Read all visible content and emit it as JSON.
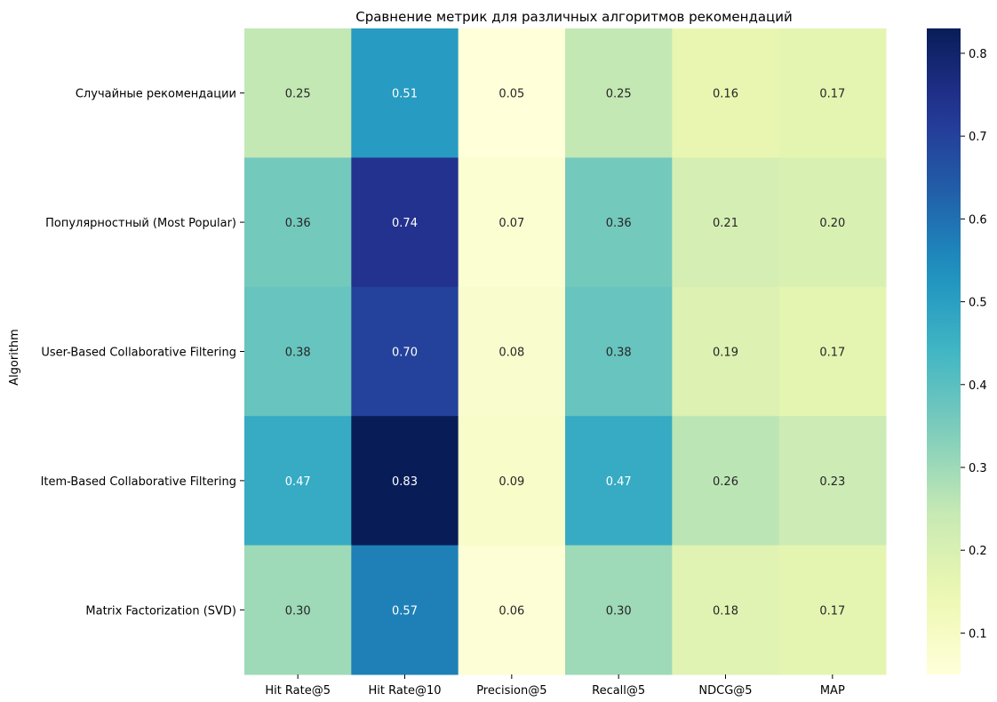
{
  "chart_data": {
    "type": "heatmap",
    "title": "Сравнение метрик для различных алгоритмов рекомендаций",
    "xlabel": "",
    "ylabel": "Algorithm",
    "columns": [
      "Hit Rate@5",
      "Hit Rate@10",
      "Precision@5",
      "Recall@5",
      "NDCG@5",
      "MAP"
    ],
    "rows": [
      "Случайные рекомендации",
      "Популярностный (Most Popular)",
      "User-Based Collaborative Filtering",
      "Item-Based Collaborative Filtering",
      "Matrix Factorization (SVD)"
    ],
    "values": [
      [
        0.25,
        0.51,
        0.05,
        0.25,
        0.16,
        0.17
      ],
      [
        0.36,
        0.74,
        0.07,
        0.36,
        0.21,
        0.2
      ],
      [
        0.38,
        0.7,
        0.08,
        0.38,
        0.19,
        0.17
      ],
      [
        0.47,
        0.83,
        0.09,
        0.47,
        0.26,
        0.23
      ],
      [
        0.3,
        0.57,
        0.06,
        0.3,
        0.18,
        0.17
      ]
    ],
    "annotation_format": "0.00",
    "colormap": "YlGnBu",
    "color_range": [
      0.05,
      0.83
    ],
    "colorbar_ticks": [
      "0.1",
      "0.2",
      "0.3",
      "0.4",
      "0.5",
      "0.6",
      "0.7",
      "0.8"
    ],
    "colorbar_tick_values": [
      0.1,
      0.2,
      0.3,
      0.4,
      0.5,
      0.6,
      0.7,
      0.8
    ],
    "grid": false,
    "legend": "colorbar-right"
  }
}
